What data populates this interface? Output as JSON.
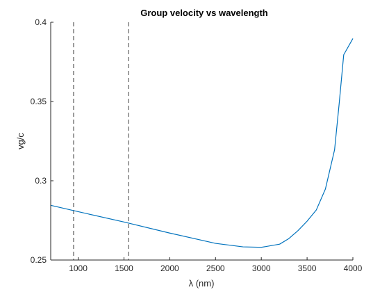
{
  "chart_data": {
    "type": "line",
    "title": "Group velocity vs wavelength",
    "xlabel": "λ (nm)",
    "ylabel": "vg/c",
    "xlim": [
      700,
      4000
    ],
    "ylim": [
      0.25,
      0.4
    ],
    "xticks": [
      1000,
      1500,
      2000,
      2500,
      3000,
      3500,
      4000
    ],
    "yticks": [
      0.25,
      0.3,
      0.35,
      0.4
    ],
    "xtick_labels": [
      "1000",
      "1500",
      "2000",
      "2500",
      "3000",
      "3500",
      "4000"
    ],
    "ytick_labels": [
      "0.25",
      "0.3",
      "0.35",
      "0.4"
    ],
    "grid": false,
    "series": [
      {
        "color": "#0072BD",
        "x": [
          700,
          1000,
          1500,
          2000,
          2500,
          2800,
          3000,
          3200,
          3300,
          3400,
          3500,
          3600,
          3700,
          3800,
          3850,
          3900,
          4000
        ],
        "y": [
          0.2845,
          0.2805,
          0.274,
          0.267,
          0.2605,
          0.2583,
          0.258,
          0.26,
          0.2635,
          0.2685,
          0.2745,
          0.2815,
          0.2948,
          0.3195,
          0.3485,
          0.3795,
          0.3897
        ]
      }
    ],
    "vlines": [
      {
        "x": 950,
        "style": "dashed",
        "color": "#404040"
      },
      {
        "x": 1550,
        "style": "dashed",
        "color": "#404040"
      }
    ]
  }
}
